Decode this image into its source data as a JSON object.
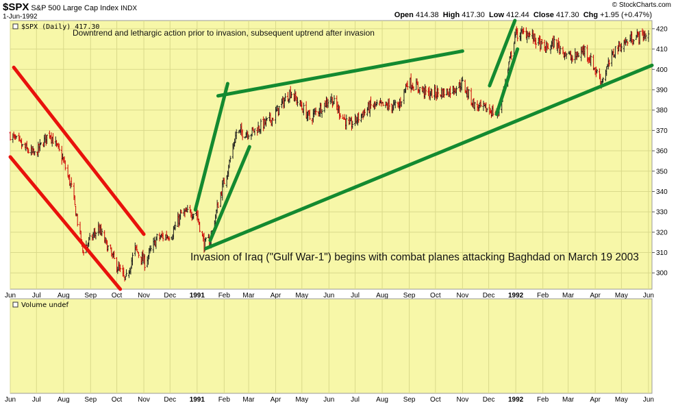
{
  "header": {
    "symbol": "$SPX",
    "name": "S&P 500 Large Cap Index",
    "exchange": "INDX",
    "date": "1-Jun-1992",
    "ohlc": {
      "open_label": "Open",
      "open": "414.38",
      "high_label": "High",
      "high": "417.30",
      "low_label": "Low",
      "low": "412.44",
      "close_label": "Close",
      "close": "417.30",
      "chg_label": "Chg",
      "chg": "+1.95 (+0.47%)"
    },
    "watermark": "© StockCharts.com"
  },
  "chart_data": [
    {
      "type": "ohlc-bar",
      "legend": "$SPX (Daily) 417.30",
      "ylim": [
        292,
        424
      ],
      "y_ticks": [
        300,
        310,
        320,
        330,
        340,
        350,
        360,
        370,
        380,
        390,
        400,
        410,
        420
      ],
      "x_ticks": [
        "Jun",
        "Jul",
        "Aug",
        "Sep",
        "Oct",
        "Nov",
        "Dec",
        "1991",
        "Feb",
        "Mar",
        "Apr",
        "May",
        "Jun",
        "Jul",
        "Aug",
        "Sep",
        "Oct",
        "Nov",
        "Dec",
        "1992",
        "Feb",
        "Mar",
        "Apr",
        "May",
        "Jun"
      ],
      "bold_ticks": [
        "1991",
        "1992"
      ],
      "price_path": [
        {
          "date": "1990-06-01",
          "close": 368
        },
        {
          "date": "1990-06-15",
          "close": 362
        },
        {
          "date": "1990-06-29",
          "close": 358
        },
        {
          "date": "1990-07-16",
          "close": 369
        },
        {
          "date": "1990-07-31",
          "close": 356
        },
        {
          "date": "1990-08-10",
          "close": 342
        },
        {
          "date": "1990-08-23",
          "close": 311
        },
        {
          "date": "1990-09-10",
          "close": 322
        },
        {
          "date": "1990-09-28",
          "close": 306
        },
        {
          "date": "1990-10-11",
          "close": 296
        },
        {
          "date": "1990-10-22",
          "close": 312
        },
        {
          "date": "1990-11-02",
          "close": 305
        },
        {
          "date": "1990-11-16",
          "close": 317
        },
        {
          "date": "1990-12-03",
          "close": 319
        },
        {
          "date": "1990-12-14",
          "close": 329
        },
        {
          "date": "1990-12-31",
          "close": 330
        },
        {
          "date": "1991-01-09",
          "close": 314
        },
        {
          "date": "1991-01-16",
          "close": 316
        },
        {
          "date": "1991-01-25",
          "close": 334
        },
        {
          "date": "1991-02-08",
          "close": 356
        },
        {
          "date": "1991-02-15",
          "close": 369
        },
        {
          "date": "1991-03-04",
          "close": 369
        },
        {
          "date": "1991-03-28",
          "close": 376
        },
        {
          "date": "1991-04-18",
          "close": 389
        },
        {
          "date": "1991-05-10",
          "close": 376
        },
        {
          "date": "1991-06-03",
          "close": 386
        },
        {
          "date": "1991-06-24",
          "close": 372
        },
        {
          "date": "1991-07-19",
          "close": 382
        },
        {
          "date": "1991-08-20",
          "close": 382
        },
        {
          "date": "1991-08-30",
          "close": 394
        },
        {
          "date": "1991-09-23",
          "close": 388
        },
        {
          "date": "1991-10-15",
          "close": 389
        },
        {
          "date": "1991-11-01",
          "close": 393
        },
        {
          "date": "1991-11-15",
          "close": 382
        },
        {
          "date": "1991-12-02",
          "close": 380
        },
        {
          "date": "1991-12-11",
          "close": 378
        },
        {
          "date": "1991-12-20",
          "close": 393
        },
        {
          "date": "1991-12-31",
          "close": 417
        },
        {
          "date": "1992-01-15",
          "close": 418
        },
        {
          "date": "1992-02-03",
          "close": 410
        },
        {
          "date": "1992-02-14",
          "close": 413
        },
        {
          "date": "1992-03-06",
          "close": 405
        },
        {
          "date": "1992-03-20",
          "close": 410
        },
        {
          "date": "1992-04-08",
          "close": 394
        },
        {
          "date": "1992-04-24",
          "close": 410
        },
        {
          "date": "1992-05-15",
          "close": 416
        },
        {
          "date": "1992-06-01",
          "close": 417
        }
      ],
      "annotations": [
        {
          "text": "Downtrend and lethargic action prior to invasion, subsequent uptrend after invasion"
        },
        {
          "text": "Invasion of Iraq (\"Gulf War-1\") begins with combat planes attacking Baghdad on March 19 2003"
        }
      ],
      "trendlines": [
        {
          "color": "#e8120c",
          "from": {
            "date": "1990-06-05",
            "value": 401
          },
          "to": {
            "date": "1990-11-01",
            "value": 319
          }
        },
        {
          "color": "#e8120c",
          "from": {
            "date": "1990-06-01",
            "value": 357
          },
          "to": {
            "date": "1990-10-05",
            "value": 292
          }
        },
        {
          "color": "#138a30",
          "from": {
            "date": "1991-01-25",
            "value": 387
          },
          "to": {
            "date": "1991-11-01",
            "value": 409
          }
        },
        {
          "color": "#138a30",
          "from": {
            "date": "1991-01-11",
            "value": 312
          },
          "to": {
            "date": "1992-06-05",
            "value": 402
          }
        },
        {
          "color": "#138a30",
          "from": {
            "date": "1990-12-30",
            "value": 331
          },
          "to": {
            "date": "1991-02-05",
            "value": 393
          }
        },
        {
          "color": "#138a30",
          "from": {
            "date": "1991-01-16",
            "value": 316
          },
          "to": {
            "date": "1991-03-02",
            "value": 362
          }
        },
        {
          "color": "#138a30",
          "from": {
            "date": "1991-12-02",
            "value": 392
          },
          "to": {
            "date": "1991-12-31",
            "value": 424
          }
        },
        {
          "color": "#138a30",
          "from": {
            "date": "1991-12-10",
            "value": 378
          },
          "to": {
            "date": "1992-01-03",
            "value": 410
          }
        }
      ]
    },
    {
      "type": "volume",
      "legend": "Volume undef",
      "x_ticks": [
        "Jun",
        "Jul",
        "Aug",
        "Sep",
        "Oct",
        "Nov",
        "Dec",
        "1991",
        "Feb",
        "Mar",
        "Apr",
        "May",
        "Jun",
        "Jul",
        "Aug",
        "Sep",
        "Oct",
        "Nov",
        "Dec",
        "1992",
        "Feb",
        "Mar",
        "Apr",
        "May",
        "Jun"
      ],
      "bold_ticks": [
        "1991",
        "1992"
      ]
    }
  ],
  "colors": {
    "panel_bg": "#f7f7a8",
    "grid": "#d9d98a",
    "bar_up": "#1a1a1a",
    "bar_down": "#cc0000",
    "uptrend": "#138a30",
    "downtrend": "#e8120c"
  }
}
